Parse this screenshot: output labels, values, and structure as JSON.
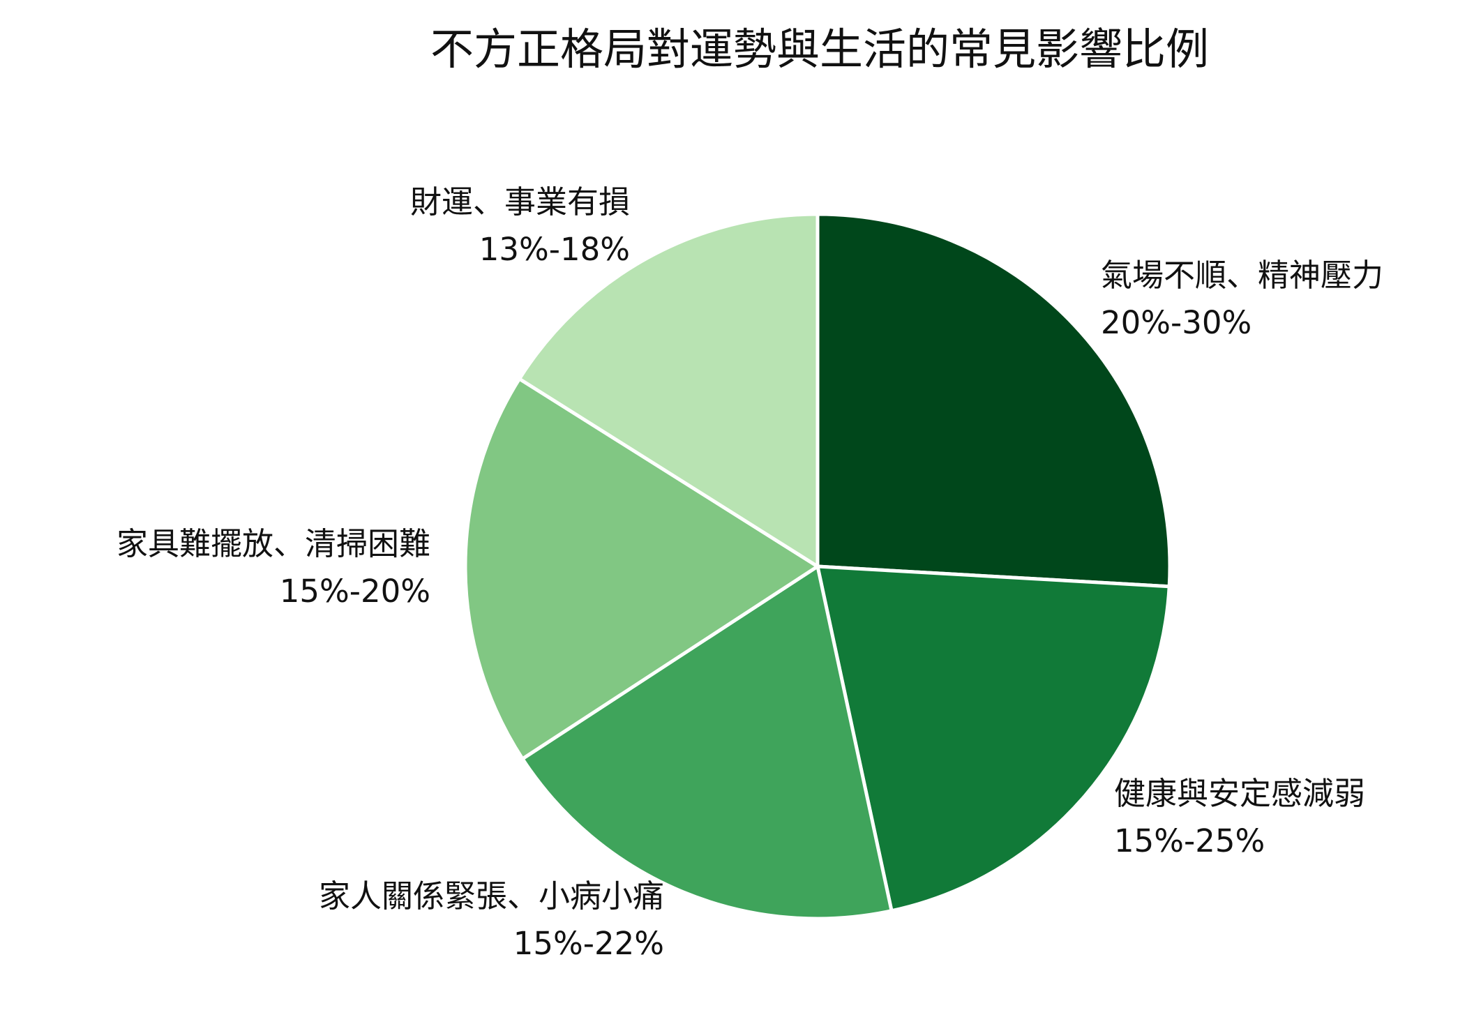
{
  "chart_data": {
    "type": "pie",
    "title": "不方正格局對運勢與生活的常見影響比例",
    "slices": [
      {
        "label": "氣場不順、精神壓力",
        "range": "20%-30%",
        "value": 25,
        "color": "#00471b"
      },
      {
        "label": "健康與安定感減弱",
        "range": "15%-25%",
        "value": 20,
        "color": "#117a38"
      },
      {
        "label": "家人關係緊張、小病小痛",
        "range": "15%-22%",
        "value": 18.5,
        "color": "#3fa45b"
      },
      {
        "label": "家具難擺放、清掃困難",
        "range": "15%-20%",
        "value": 17.5,
        "color": "#81c783"
      },
      {
        "label": "財運、事業有損",
        "range": "13%-18%",
        "value": 15.5,
        "color": "#b8e3b2"
      }
    ],
    "start_angle": "12 o'clock",
    "direction": "clockwise",
    "legend": "none"
  }
}
